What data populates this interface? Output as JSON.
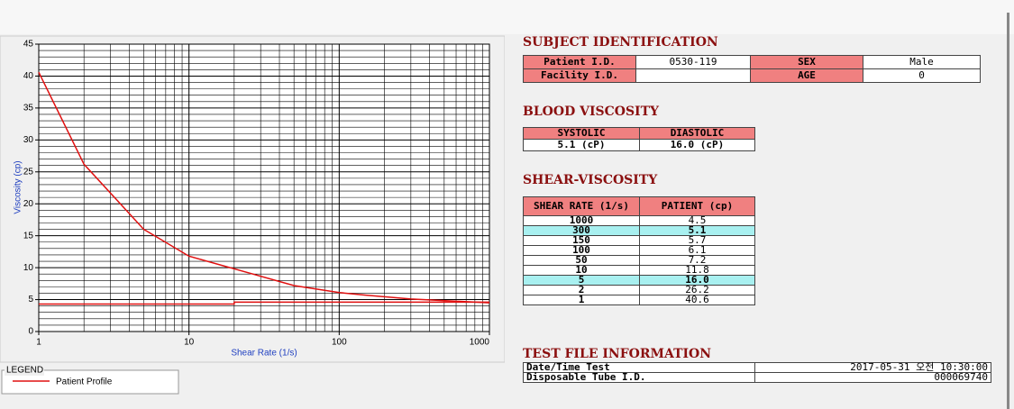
{
  "chart": {
    "type": "line",
    "x_label": "Shear Rate (1/s)",
    "y_label": "Viscosity (cp)",
    "xlim": [
      1,
      1000
    ],
    "xticks": [
      1,
      10,
      100,
      1000
    ],
    "log_x": true,
    "ylim": [
      0,
      45
    ],
    "yticks": [
      0,
      5,
      10,
      15,
      20,
      25,
      30,
      35,
      40,
      45
    ],
    "grid": true,
    "minor_grid": true,
    "legend_title": "LEGEND",
    "series": [
      {
        "name": "Patient Profile",
        "color": "#e01010",
        "x": [
          1,
          2,
          5,
          10,
          50,
          100,
          150,
          300,
          1000
        ],
        "values": [
          40.6,
          26.2,
          16.0,
          11.8,
          7.2,
          6.1,
          5.7,
          5.1,
          4.5
        ]
      },
      {
        "color": "#e01010",
        "x": [
          1,
          20,
          20,
          1000
        ],
        "values": [
          4.3,
          4.3,
          4.6,
          4.6
        ]
      }
    ]
  },
  "subject": {
    "title": "SUBJECT IDENTIFICATION",
    "patient_id_label": "Patient I.D.",
    "patient_id": "0530-119",
    "sex_label": "SEX",
    "sex": "Male",
    "facility_label": "Facility I.D.",
    "age_label": "AGE",
    "age": "0"
  },
  "blood": {
    "title": "BLOOD VISCOSITY",
    "headers": [
      "SYSTOLIC",
      "DIASTOLIC"
    ],
    "values": [
      "5.1 (cP)",
      "16.0 (cP)"
    ]
  },
  "shear": {
    "title": "SHEAR-VISCOSITY",
    "headers": [
      "SHEAR RATE (1/s)",
      "PATIENT (cp)"
    ],
    "rows": [
      [
        "1000",
        "4.5"
      ],
      [
        "300",
        "5.1"
      ],
      [
        "150",
        "5.7"
      ],
      [
        "100",
        "6.1"
      ],
      [
        "50",
        "7.2"
      ],
      [
        "10",
        "11.8"
      ],
      [
        "5",
        "16.0"
      ],
      [
        "2",
        "26.2"
      ],
      [
        "1",
        "40.6"
      ]
    ],
    "highlight_rows": [
      1,
      6
    ]
  },
  "testfile": {
    "title": "TEST FILE INFORMATION",
    "rows": [
      [
        "Date/Time Test",
        "2017-05-31 오전 10:30:00"
      ],
      [
        "Disposable Tube I.D.",
        "000069740"
      ]
    ]
  }
}
